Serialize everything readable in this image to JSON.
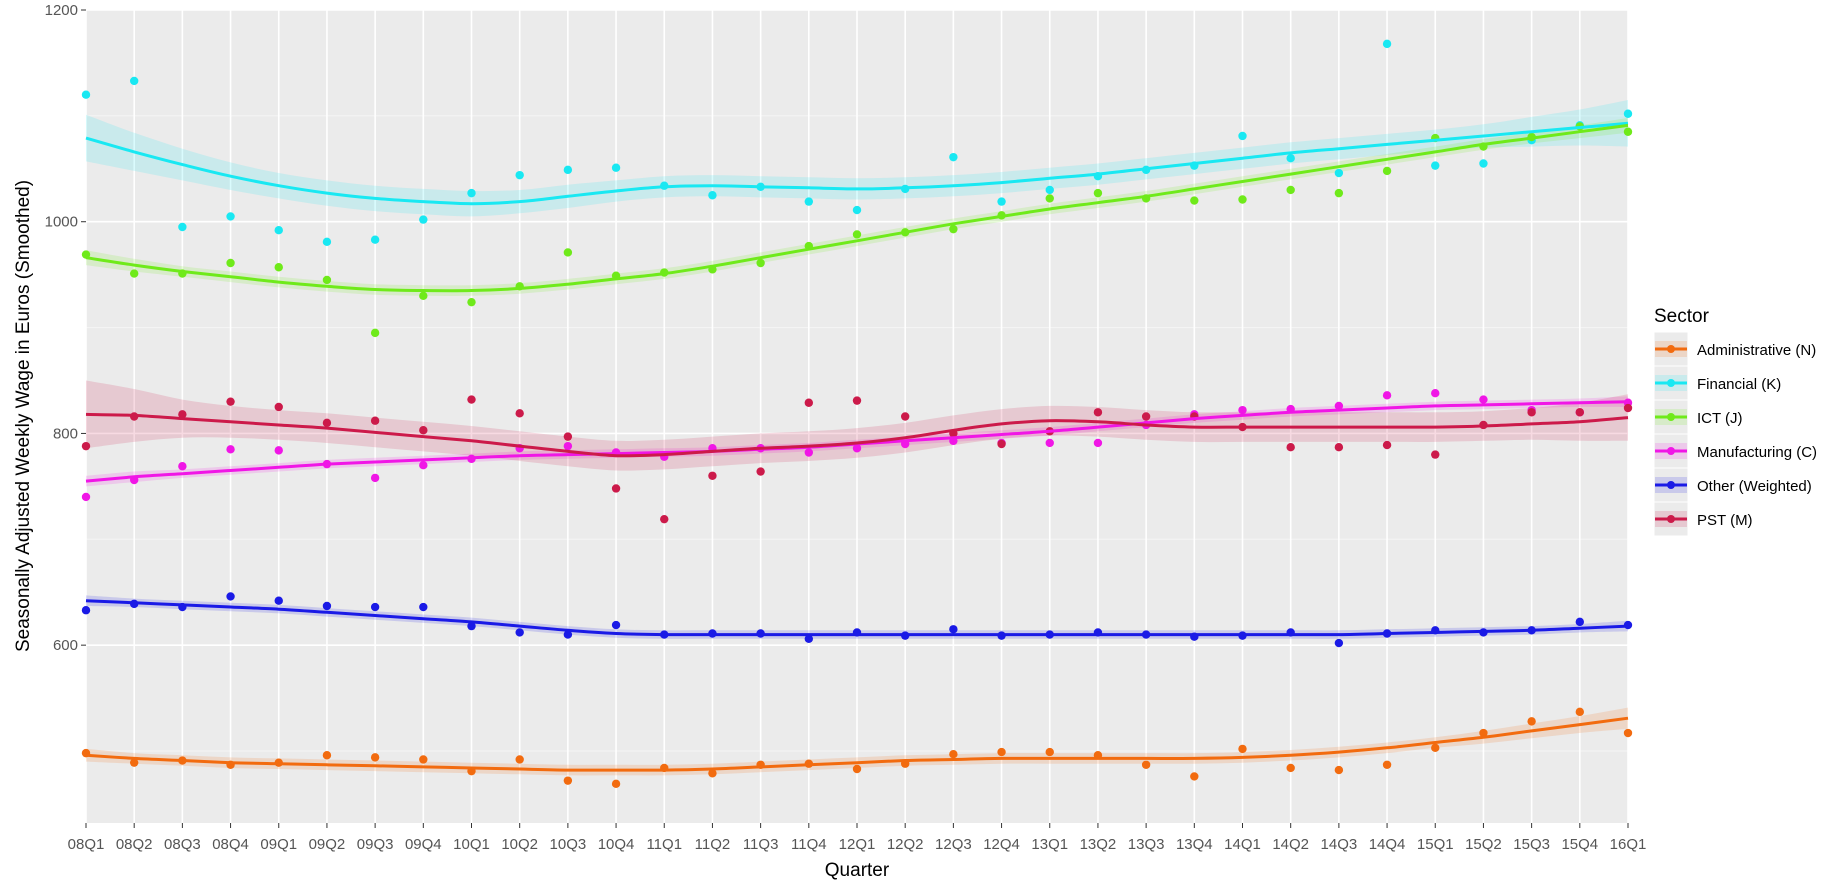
{
  "chart_data": {
    "type": "scatter",
    "title": "",
    "xlabel": "Quarter",
    "ylabel": "Seasonally Adjusted Weekly Wage in Euros (Smoothed)",
    "ylim": [
      432,
      1200
    ],
    "yticks": [
      600,
      800,
      1000,
      1200
    ],
    "grid": true,
    "legend_title": "Sector",
    "legend_position": "right",
    "x": [
      "08Q1",
      "08Q2",
      "08Q3",
      "08Q4",
      "09Q1",
      "09Q2",
      "09Q3",
      "09Q4",
      "10Q1",
      "10Q2",
      "10Q3",
      "10Q4",
      "11Q1",
      "11Q2",
      "11Q3",
      "11Q4",
      "12Q1",
      "12Q2",
      "12Q3",
      "12Q4",
      "13Q1",
      "13Q2",
      "13Q3",
      "13Q4",
      "14Q1",
      "14Q2",
      "14Q3",
      "14Q4",
      "15Q1",
      "15Q2",
      "15Q3",
      "15Q4",
      "16Q1"
    ],
    "series": [
      {
        "name": "Administrative (N)",
        "color": "#F26B0F",
        "points": [
          498,
          489,
          491,
          487,
          489,
          496,
          494,
          492,
          481,
          492,
          472,
          469,
          484,
          479,
          487,
          488,
          483,
          488,
          497,
          499,
          499,
          496,
          487,
          476,
          502,
          484,
          482,
          487,
          503,
          517,
          528,
          537,
          517
        ],
        "smooth": [
          496,
          493,
          491,
          489,
          488,
          487,
          486,
          485,
          484,
          483,
          482,
          482,
          482,
          483,
          485,
          487,
          489,
          491,
          492,
          493,
          493,
          493,
          493,
          493,
          494,
          496,
          499,
          503,
          508,
          513,
          519,
          525,
          531
        ],
        "band": [
          6,
          5,
          5,
          5,
          5,
          5,
          5,
          5,
          5,
          5,
          5,
          5,
          5,
          5,
          5,
          5,
          5,
          5,
          5,
          5,
          5,
          5,
          5,
          5,
          5,
          5,
          5,
          5,
          5,
          6,
          7,
          8,
          10
        ]
      },
      {
        "name": "Financial (K)",
        "color": "#19E8F2",
        "points": [
          1120,
          1133,
          995,
          1005,
          992,
          981,
          983,
          1002,
          1027,
          1044,
          1049,
          1051,
          1034,
          1025,
          1033,
          1019,
          1011,
          1031,
          1061,
          1019,
          1030,
          1043,
          1049,
          1053,
          1081,
          1060,
          1046,
          1168,
          1053,
          1055,
          1077,
          1091,
          1102
        ],
        "smooth": [
          1079,
          1066,
          1054,
          1043,
          1034,
          1027,
          1022,
          1019,
          1017,
          1019,
          1024,
          1029,
          1033,
          1034,
          1033,
          1032,
          1031,
          1032,
          1034,
          1037,
          1041,
          1045,
          1050,
          1055,
          1060,
          1065,
          1069,
          1073,
          1077,
          1081,
          1085,
          1089,
          1093
        ],
        "band": [
          22,
          18,
          15,
          13,
          12,
          12,
          12,
          12,
          12,
          11,
          11,
          10,
          10,
          10,
          10,
          10,
          10,
          10,
          10,
          10,
          10,
          10,
          10,
          10,
          10,
          10,
          10,
          10,
          10,
          11,
          14,
          17,
          22
        ]
      },
      {
        "name": "ICT (J)",
        "color": "#6FEA1A",
        "points": [
          969,
          951,
          951,
          961,
          957,
          945,
          895,
          930,
          924,
          939,
          971,
          949,
          952,
          955,
          961,
          977,
          988,
          990,
          993,
          1006,
          1022,
          1027,
          1022,
          1020,
          1021,
          1030,
          1027,
          1048,
          1079,
          1071,
          1080,
          1090,
          1085
        ],
        "smooth": [
          966,
          959,
          953,
          948,
          943,
          939,
          936,
          935,
          935,
          937,
          941,
          946,
          951,
          958,
          966,
          974,
          982,
          990,
          998,
          1005,
          1012,
          1018,
          1024,
          1031,
          1038,
          1045,
          1052,
          1059,
          1066,
          1073,
          1079,
          1085,
          1091
        ],
        "band": [
          7,
          6,
          5,
          5,
          5,
          5,
          5,
          5,
          5,
          5,
          5,
          5,
          5,
          5,
          5,
          5,
          5,
          5,
          5,
          5,
          5,
          5,
          5,
          5,
          5,
          5,
          5,
          5,
          5,
          5,
          5,
          6,
          7
        ]
      },
      {
        "name": "Manufacturing (C)",
        "color": "#F016E6",
        "points": [
          740,
          756,
          769,
          785,
          784,
          771,
          758,
          770,
          776,
          786,
          788,
          782,
          778,
          786,
          786,
          782,
          786,
          790,
          793,
          791,
          791,
          791,
          808,
          818,
          822,
          823,
          826,
          836,
          838,
          832,
          822,
          820,
          829
        ],
        "smooth": [
          755,
          759,
          762,
          765,
          768,
          771,
          773,
          775,
          777,
          779,
          780,
          781,
          782,
          783,
          785,
          787,
          790,
          793,
          796,
          799,
          802,
          806,
          810,
          814,
          817,
          820,
          822,
          824,
          826,
          827,
          828,
          829,
          830
        ],
        "band": [
          5,
          5,
          4,
          4,
          4,
          4,
          4,
          4,
          4,
          4,
          4,
          4,
          4,
          4,
          4,
          4,
          4,
          4,
          4,
          4,
          4,
          4,
          4,
          4,
          4,
          4,
          4,
          4,
          4,
          4,
          4,
          4,
          5
        ]
      },
      {
        "name": "Other (Weighted)",
        "color": "#1A1AE6",
        "points": [
          633,
          639,
          636,
          646,
          642,
          637,
          636,
          636,
          618,
          612,
          610,
          619,
          610,
          611,
          611,
          606,
          612,
          609,
          615,
          609,
          610,
          612,
          610,
          608,
          609,
          612,
          602,
          611,
          614,
          612,
          614,
          622,
          619
        ],
        "smooth": [
          642,
          640,
          638,
          636,
          634,
          631,
          628,
          625,
          622,
          618,
          614,
          611,
          610,
          610,
          610,
          610,
          610,
          610,
          610,
          610,
          610,
          610,
          610,
          610,
          610,
          610,
          610,
          611,
          612,
          613,
          614,
          616,
          618
        ],
        "band": [
          5,
          4,
          4,
          4,
          4,
          4,
          4,
          4,
          4,
          4,
          4,
          4,
          4,
          4,
          4,
          4,
          4,
          4,
          4,
          4,
          4,
          4,
          4,
          4,
          4,
          4,
          4,
          4,
          4,
          4,
          4,
          4,
          5
        ]
      },
      {
        "name": "PST (M)",
        "color": "#CC1A4A",
        "points": [
          788,
          816,
          818,
          830,
          825,
          810,
          812,
          803,
          832,
          819,
          797,
          748,
          719,
          760,
          764,
          829,
          831,
          816,
          800,
          790,
          802,
          820,
          816,
          816,
          806,
          787,
          787,
          789,
          780,
          808,
          820,
          820,
          824
        ],
        "smooth": [
          818,
          817,
          814,
          811,
          808,
          805,
          801,
          797,
          793,
          788,
          783,
          779,
          780,
          783,
          786,
          788,
          791,
          796,
          803,
          809,
          812,
          811,
          808,
          806,
          806,
          806,
          806,
          806,
          806,
          807,
          809,
          811,
          815
        ],
        "band": [
          32,
          25,
          18,
          15,
          14,
          14,
          14,
          14,
          14,
          14,
          14,
          14,
          14,
          14,
          14,
          14,
          14,
          14,
          14,
          14,
          14,
          14,
          14,
          14,
          14,
          14,
          14,
          14,
          14,
          14,
          15,
          18,
          22
        ]
      }
    ]
  }
}
